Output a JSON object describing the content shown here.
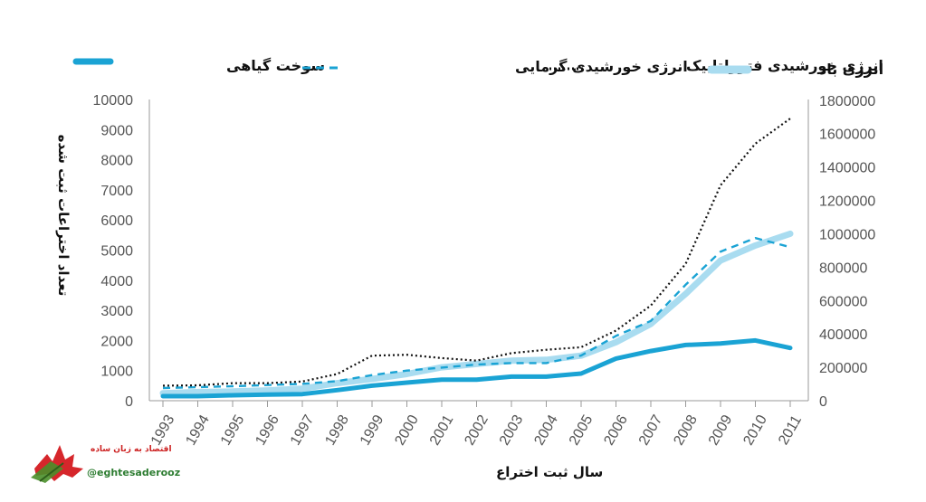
{
  "chart_data": {
    "type": "line",
    "xlabel": "سال ثبت اختراع",
    "ylabel": "تعداد اختراعات ثبت شده",
    "categories": [
      "1993",
      "1994",
      "1995",
      "1996",
      "1997",
      "1998",
      "1999",
      "2000",
      "2001",
      "2002",
      "2003",
      "2004",
      "2005",
      "2006",
      "2007",
      "2008",
      "2009",
      "2010",
      "2011"
    ],
    "y_left": {
      "min": 0,
      "max": 10000,
      "ticks": [
        "0",
        "1000",
        "2000",
        "3000",
        "4000",
        "5000",
        "6000",
        "7000",
        "8000",
        "9000",
        "10000"
      ]
    },
    "y_right": {
      "min": 0,
      "max": 1800000,
      "ticks": [
        "0",
        "200000",
        "400000",
        "600000",
        "800000",
        "1000000",
        "1200000",
        "1400000",
        "1600000",
        "1800000"
      ]
    },
    "grid": false,
    "legend_position": "top",
    "series": [
      {
        "name": "سوخت گیاهی",
        "axis": "left",
        "style": "solid-thick",
        "color": "#1aa3d4",
        "values": [
          150,
          150,
          180,
          200,
          220,
          350,
          500,
          600,
          700,
          700,
          800,
          800,
          900,
          1400,
          1650,
          1850,
          1900,
          2000,
          1750
        ]
      },
      {
        "name": "انرژی خورشیدی گرمایی",
        "axis": "left",
        "style": "dashed",
        "color": "#1aa3d4",
        "values": [
          420,
          450,
          480,
          520,
          560,
          650,
          850,
          1000,
          1100,
          1200,
          1250,
          1250,
          1500,
          2150,
          2650,
          3850,
          4950,
          5400,
          5100
        ]
      },
      {
        "name": "انرژی خورشیدی فتوولتاییک",
        "axis": "right",
        "style": "dotted",
        "color": "#111111",
        "values": [
          90000,
          92000,
          105000,
          105000,
          115000,
          160000,
          270000,
          275000,
          255000,
          240000,
          285000,
          305000,
          320000,
          420000,
          570000,
          820000,
          1290000,
          1540000,
          1690000
        ]
      },
      {
        "name": "انرژی باد",
        "axis": "right",
        "style": "solid-wide",
        "color": "#a9dcf0",
        "values": [
          45000,
          52000,
          55000,
          62000,
          72000,
          105000,
          130000,
          160000,
          200000,
          220000,
          240000,
          245000,
          270000,
          350000,
          460000,
          640000,
          840000,
          930000,
          1000000
        ]
      }
    ]
  },
  "brand": {
    "title": "اقتصاد به زبان ساده",
    "handle": "@eghtesaderooz",
    "logo_icon": "maple-leaf-icon"
  }
}
